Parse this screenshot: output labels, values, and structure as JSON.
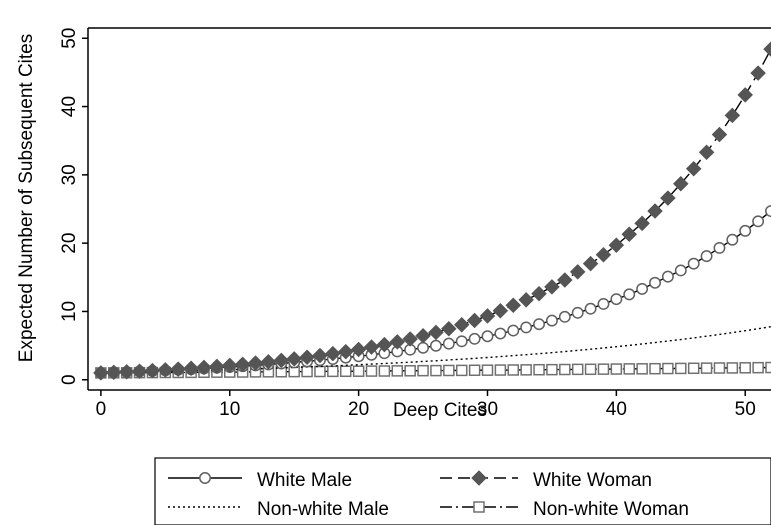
{
  "chart_data": {
    "type": "line",
    "title": "",
    "xlabel": "Deep Cites",
    "ylabel": "Expected Number of Subsequent Cites",
    "xlim": [
      -1,
      52
    ],
    "ylim": [
      -1.5,
      51.5
    ],
    "xticks": [
      0,
      10,
      20,
      30,
      40,
      50
    ],
    "yticks": [
      0,
      10,
      20,
      30,
      40,
      50
    ],
    "grid": false,
    "legend_position": "bottom",
    "x": [
      0,
      1,
      2,
      3,
      4,
      5,
      6,
      7,
      8,
      9,
      10,
      11,
      12,
      13,
      14,
      15,
      16,
      17,
      18,
      19,
      20,
      21,
      22,
      23,
      24,
      25,
      26,
      27,
      28,
      29,
      30,
      31,
      32,
      33,
      34,
      35,
      36,
      37,
      38,
      39,
      40,
      41,
      42,
      43,
      44,
      45,
      46,
      47,
      48,
      49,
      50,
      51,
      52
    ],
    "series": [
      {
        "name": "White Male",
        "style": "solid-circle",
        "color": "#606060",
        "values": [
          1.0,
          1.07,
          1.13,
          1.21,
          1.28,
          1.37,
          1.45,
          1.54,
          1.64,
          1.75,
          1.86,
          1.98,
          2.1,
          2.24,
          2.38,
          2.53,
          2.69,
          2.86,
          3.04,
          3.24,
          3.44,
          3.66,
          3.89,
          4.14,
          4.4,
          4.68,
          4.98,
          5.29,
          5.63,
          5.99,
          6.37,
          6.77,
          7.2,
          7.66,
          8.14,
          8.66,
          9.21,
          9.8,
          10.4,
          11.1,
          11.8,
          12.5,
          13.3,
          14.2,
          15.1,
          16.0,
          17.0,
          18.1,
          19.3,
          20.5,
          21.8,
          23.2,
          24.7
        ]
      },
      {
        "name": "White Woman",
        "style": "dashed-diamond",
        "color": "#555555",
        "values": [
          1.0,
          1.08,
          1.16,
          1.25,
          1.34,
          1.45,
          1.56,
          1.68,
          1.81,
          1.95,
          2.1,
          2.26,
          2.44,
          2.63,
          2.83,
          3.05,
          3.29,
          3.54,
          3.82,
          4.11,
          4.43,
          4.78,
          5.15,
          5.54,
          5.97,
          6.44,
          6.93,
          7.47,
          8.05,
          8.68,
          9.35,
          10.1,
          10.9,
          11.7,
          12.6,
          13.6,
          14.6,
          15.8,
          17.0,
          18.3,
          19.7,
          21.3,
          22.9,
          24.7,
          26.6,
          28.7,
          30.9,
          33.3,
          35.9,
          38.7,
          41.7,
          44.9,
          48.4
        ]
      },
      {
        "name": "Non-white Male",
        "style": "dotted",
        "color": "#000000",
        "values": [
          1.0,
          1.04,
          1.08,
          1.13,
          1.17,
          1.22,
          1.27,
          1.32,
          1.37,
          1.43,
          1.48,
          1.54,
          1.6,
          1.67,
          1.73,
          1.8,
          1.88,
          1.95,
          2.03,
          2.11,
          2.2,
          2.29,
          2.38,
          2.47,
          2.57,
          2.68,
          2.78,
          2.9,
          3.01,
          3.13,
          3.26,
          3.39,
          3.53,
          3.67,
          3.82,
          3.97,
          4.13,
          4.3,
          4.47,
          4.65,
          4.84,
          5.03,
          5.24,
          5.45,
          5.67,
          5.89,
          6.13,
          6.38,
          6.63,
          6.9,
          7.18,
          7.47,
          7.77
        ]
      },
      {
        "name": "Non-white Woman",
        "style": "dashdot-square",
        "color": "#707070",
        "values": [
          1.0,
          1.01,
          1.02,
          1.04,
          1.05,
          1.06,
          1.07,
          1.08,
          1.1,
          1.11,
          1.12,
          1.13,
          1.15,
          1.16,
          1.17,
          1.19,
          1.2,
          1.21,
          1.23,
          1.24,
          1.25,
          1.27,
          1.28,
          1.3,
          1.31,
          1.33,
          1.34,
          1.36,
          1.37,
          1.39,
          1.4,
          1.42,
          1.43,
          1.45,
          1.47,
          1.48,
          1.5,
          1.52,
          1.53,
          1.55,
          1.57,
          1.59,
          1.6,
          1.62,
          1.64,
          1.66,
          1.68,
          1.7,
          1.72,
          1.73,
          1.75,
          1.77,
          1.79
        ]
      }
    ]
  }
}
